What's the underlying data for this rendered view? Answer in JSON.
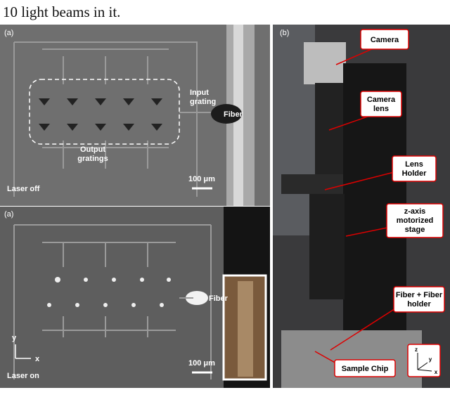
{
  "caption_top": "10 light beams in it.",
  "panel_a": {
    "top": {
      "label": "(a)",
      "input_grating": [
        "Input",
        "grating"
      ],
      "fiber": "Fiber",
      "output_gratings": [
        "Output",
        "gratings"
      ],
      "scale": "100 μm",
      "status": "Laser off"
    },
    "bottom": {
      "label": "(a)",
      "fiber": "Fiber",
      "axis_y": "y",
      "axis_x": "x",
      "scale": "100 μm",
      "status": "Laser on"
    }
  },
  "panel_b": {
    "label": "(b)",
    "camera": "Camera",
    "camera_lens": [
      "Camera",
      "lens"
    ],
    "lens_holder": [
      "Lens",
      "Holder"
    ],
    "stage": [
      "z-axis",
      "motorized",
      "stage"
    ],
    "fiber_holder": [
      "Fiber + Fiber",
      "holder"
    ],
    "sample_chip": "Sample Chip",
    "axis_z": "z",
    "axis_y": "y",
    "axis_x": "x"
  }
}
